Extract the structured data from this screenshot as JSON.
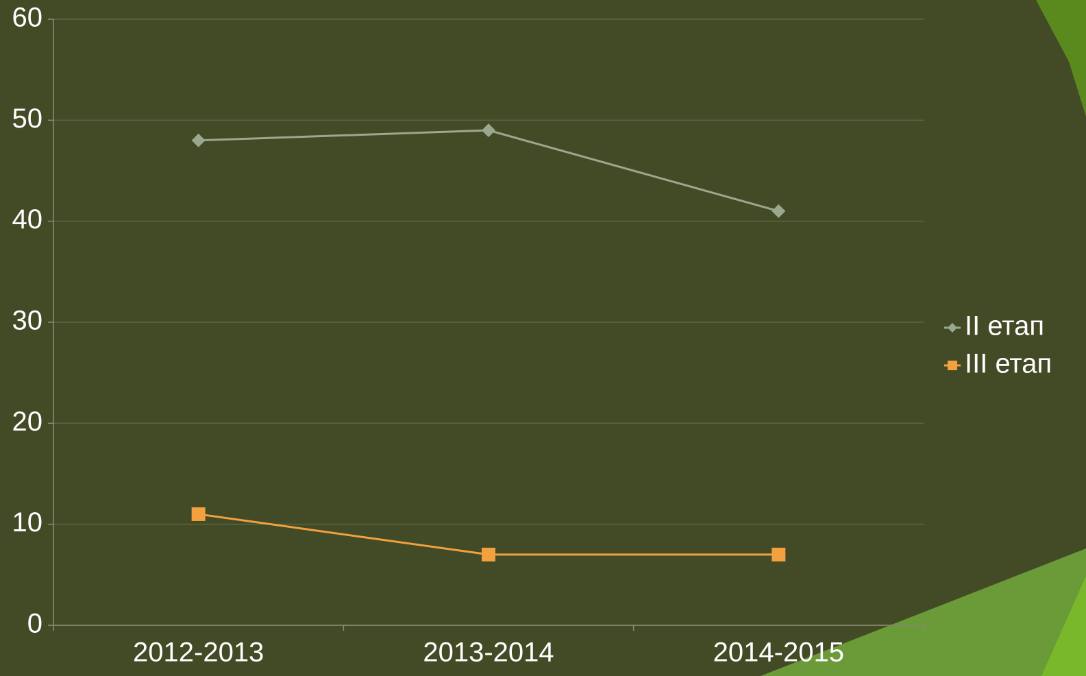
{
  "chart_data": {
    "type": "line",
    "categories": [
      "2012-2013",
      "2013-2014",
      "2014-2015"
    ],
    "series": [
      {
        "name": "II етап",
        "color": "#9aa88f",
        "marker": "diamond",
        "values": [
          48,
          49,
          41
        ]
      },
      {
        "name": "III етап",
        "color": "#f2a13e",
        "marker": "square",
        "values": [
          11,
          7,
          7
        ]
      }
    ],
    "ylim": [
      0,
      60
    ],
    "yticks": [
      0,
      10,
      20,
      30,
      40,
      50,
      60
    ],
    "grid": true,
    "legend": "right"
  }
}
